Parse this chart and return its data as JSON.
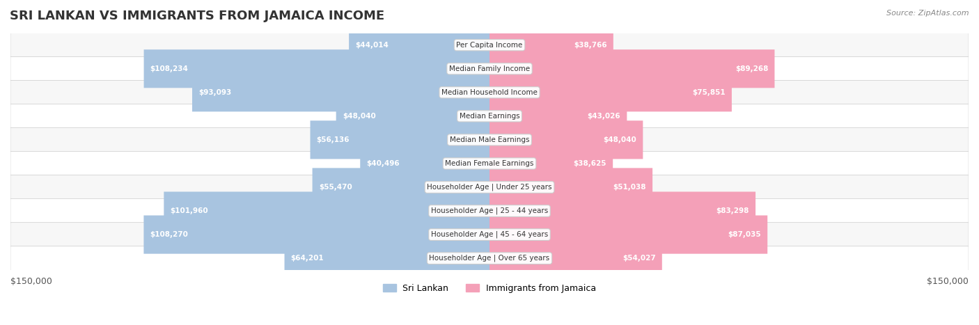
{
  "title": "SRI LANKAN VS IMMIGRANTS FROM JAMAICA INCOME",
  "source": "Source: ZipAtlas.com",
  "categories": [
    "Per Capita Income",
    "Median Family Income",
    "Median Household Income",
    "Median Earnings",
    "Median Male Earnings",
    "Median Female Earnings",
    "Householder Age | Under 25 years",
    "Householder Age | 25 - 44 years",
    "Householder Age | 45 - 64 years",
    "Householder Age | Over 65 years"
  ],
  "sri_lankan": [
    44014,
    108234,
    93093,
    48040,
    56136,
    40496,
    55470,
    101960,
    108270,
    64201
  ],
  "jamaica": [
    38766,
    89268,
    75851,
    43026,
    48040,
    38625,
    51038,
    83298,
    87035,
    54027
  ],
  "sri_lankan_labels": [
    "$44,014",
    "$108,234",
    "$93,093",
    "$48,040",
    "$56,136",
    "$40,496",
    "$55,470",
    "$101,960",
    "$108,270",
    "$64,201"
  ],
  "jamaica_labels": [
    "$38,766",
    "$89,268",
    "$75,851",
    "$43,026",
    "$48,040",
    "$38,625",
    "$51,038",
    "$83,298",
    "$87,035",
    "$54,027"
  ],
  "max_val": 150000,
  "color_sri_lankan": "#a8c4e0",
  "color_jamaica": "#f4a0b8",
  "color_sri_lankan_dark": "#6699cc",
  "color_jamaica_dark": "#f06090",
  "label_color_sri_lankan_inside": "#ffffff",
  "label_color_jamaica_inside": "#ffffff",
  "label_color_outside": "#888888",
  "background_row_even": "#f5f5f5",
  "background_row_odd": "#ffffff",
  "xlabel_left": "$150,000",
  "xlabel_right": "$150,000",
  "legend_sri_lankan": "Sri Lankan",
  "legend_jamaica": "Immigrants from Jamaica"
}
